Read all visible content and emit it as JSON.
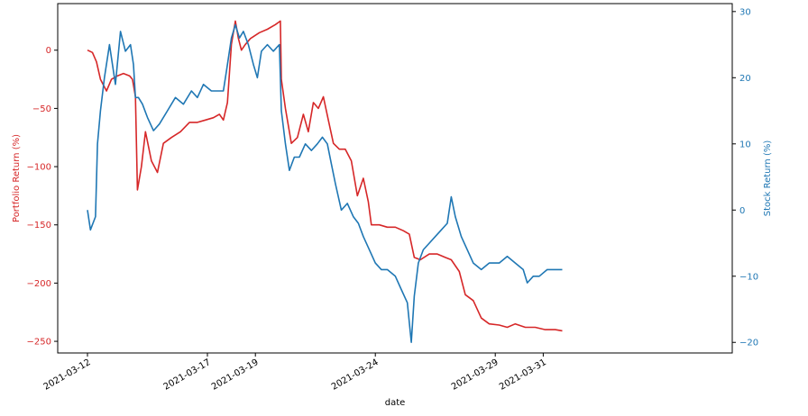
{
  "chart_data": {
    "type": "line",
    "xlabel": "date",
    "x_ticks": [
      "2021-03-12",
      "2021-03-17",
      "2021-03-19",
      "2021-03-24",
      "2021-03-29",
      "2021-03-31"
    ],
    "left_axis": {
      "label": "Portfolio Return (%)",
      "color": "#d62728",
      "ticks": [
        0,
        -50,
        -100,
        -150,
        -200,
        -250
      ],
      "ylim": [
        -260,
        40
      ]
    },
    "right_axis": {
      "label": "Stock Return (%)",
      "color": "#1f77b4",
      "ticks": [
        30,
        20,
        10,
        0,
        -10,
        -20
      ],
      "ylim": [
        -21.6,
        31.2
      ]
    },
    "grid": false,
    "series": [
      {
        "axis": "left",
        "color": "#d62728",
        "points": [
          [
            "2021-03-12 00:00",
            0
          ],
          [
            "2021-03-12 05:00",
            -2
          ],
          [
            "2021-03-12 09:00",
            -10
          ],
          [
            "2021-03-12 13:00",
            -25
          ],
          [
            "2021-03-12 19:00",
            -35
          ],
          [
            "2021-03-13 00:00",
            -25
          ],
          [
            "2021-03-13 06:00",
            -22
          ],
          [
            "2021-03-13 12:00",
            -20
          ],
          [
            "2021-03-13 18:00",
            -22
          ],
          [
            "2021-03-13 21:00",
            -25
          ],
          [
            "2021-03-14 00:00",
            -40
          ],
          [
            "2021-03-14 02:00",
            -120
          ],
          [
            "2021-03-14 06:00",
            -100
          ],
          [
            "2021-03-14 10:00",
            -70
          ],
          [
            "2021-03-14 16:00",
            -95
          ],
          [
            "2021-03-14 22:00",
            -105
          ],
          [
            "2021-03-15 04:00",
            -80
          ],
          [
            "2021-03-15 12:00",
            -75
          ],
          [
            "2021-03-15 21:00",
            -70
          ],
          [
            "2021-03-16 06:00",
            -62
          ],
          [
            "2021-03-16 14:00",
            -62
          ],
          [
            "2021-03-16 22:00",
            -60
          ],
          [
            "2021-03-17 06:00",
            -58
          ],
          [
            "2021-03-17 12:00",
            -55
          ],
          [
            "2021-03-17 16:00",
            -60
          ],
          [
            "2021-03-17 20:00",
            -45
          ],
          [
            "2021-03-18 00:00",
            5
          ],
          [
            "2021-03-18 04:00",
            25
          ],
          [
            "2021-03-18 07:00",
            10
          ],
          [
            "2021-03-18 10:00",
            0
          ],
          [
            "2021-03-18 14:00",
            5
          ],
          [
            "2021-03-18 19:00",
            10
          ],
          [
            "2021-03-19 04:00",
            15
          ],
          [
            "2021-03-19 12:00",
            18
          ],
          [
            "2021-03-19 20:00",
            22
          ],
          [
            "2021-03-20 01:00",
            25
          ],
          [
            "2021-03-20 02:00",
            -25
          ],
          [
            "2021-03-20 06:00",
            -50
          ],
          [
            "2021-03-20 12:00",
            -80
          ],
          [
            "2021-03-20 18:00",
            -75
          ],
          [
            "2021-03-21 00:00",
            -55
          ],
          [
            "2021-03-21 05:00",
            -70
          ],
          [
            "2021-03-21 10:00",
            -45
          ],
          [
            "2021-03-21 15:00",
            -50
          ],
          [
            "2021-03-21 20:00",
            -40
          ],
          [
            "2021-03-22 01:00",
            -60
          ],
          [
            "2021-03-22 06:00",
            -80
          ],
          [
            "2021-03-22 12:00",
            -85
          ],
          [
            "2021-03-22 18:00",
            -85
          ],
          [
            "2021-03-23 00:00",
            -95
          ],
          [
            "2021-03-23 06:00",
            -125
          ],
          [
            "2021-03-23 12:00",
            -110
          ],
          [
            "2021-03-23 17:00",
            -130
          ],
          [
            "2021-03-23 20:00",
            -150
          ],
          [
            "2021-03-24 04:00",
            -150
          ],
          [
            "2021-03-24 12:00",
            -152
          ],
          [
            "2021-03-24 20:00",
            -152
          ],
          [
            "2021-03-25 04:00",
            -155
          ],
          [
            "2021-03-25 10:00",
            -158
          ],
          [
            "2021-03-25 15:00",
            -178
          ],
          [
            "2021-03-25 21:00",
            -180
          ],
          [
            "2021-03-26 06:00",
            -175
          ],
          [
            "2021-03-26 14:00",
            -175
          ],
          [
            "2021-03-26 22:00",
            -178
          ],
          [
            "2021-03-27 04:00",
            -180
          ],
          [
            "2021-03-27 12:00",
            -190
          ],
          [
            "2021-03-27 18:00",
            -210
          ],
          [
            "2021-03-28 02:00",
            -215
          ],
          [
            "2021-03-28 10:00",
            -230
          ],
          [
            "2021-03-28 18:00",
            -235
          ],
          [
            "2021-03-29 04:00",
            -236
          ],
          [
            "2021-03-29 12:00",
            -238
          ],
          [
            "2021-03-29 20:00",
            -235
          ],
          [
            "2021-03-30 06:00",
            -238
          ],
          [
            "2021-03-30 16:00",
            -238
          ],
          [
            "2021-03-31 02:00",
            -240
          ],
          [
            "2021-03-31 12:00",
            -240
          ],
          [
            "2021-03-31 19:00",
            -241
          ]
        ]
      },
      {
        "axis": "right",
        "color": "#1f77b4",
        "points": [
          [
            "2021-03-12 00:00",
            0
          ],
          [
            "2021-03-12 03:00",
            -3
          ],
          [
            "2021-03-12 08:00",
            -1
          ],
          [
            "2021-03-12 10:00",
            10
          ],
          [
            "2021-03-12 13:00",
            15
          ],
          [
            "2021-03-12 17:00",
            20
          ],
          [
            "2021-03-12 22:00",
            25
          ],
          [
            "2021-03-13 04:00",
            19
          ],
          [
            "2021-03-13 09:00",
            27
          ],
          [
            "2021-03-13 14:00",
            24
          ],
          [
            "2021-03-13 19:00",
            25
          ],
          [
            "2021-03-13 22:00",
            22
          ],
          [
            "2021-03-14 00:00",
            17
          ],
          [
            "2021-03-14 03:00",
            17
          ],
          [
            "2021-03-14 07:00",
            16
          ],
          [
            "2021-03-14 12:00",
            14
          ],
          [
            "2021-03-14 18:00",
            12
          ],
          [
            "2021-03-15 00:00",
            13
          ],
          [
            "2021-03-15 08:00",
            15
          ],
          [
            "2021-03-15 16:00",
            17
          ],
          [
            "2021-03-16 00:00",
            16
          ],
          [
            "2021-03-16 08:00",
            18
          ],
          [
            "2021-03-16 14:00",
            17
          ],
          [
            "2021-03-16 20:00",
            19
          ],
          [
            "2021-03-17 04:00",
            18
          ],
          [
            "2021-03-17 10:00",
            18
          ],
          [
            "2021-03-17 16:00",
            18
          ],
          [
            "2021-03-17 19:00",
            21
          ],
          [
            "2021-03-18 00:00",
            26
          ],
          [
            "2021-03-18 04:00",
            28
          ],
          [
            "2021-03-18 08:00",
            26
          ],
          [
            "2021-03-18 12:00",
            27
          ],
          [
            "2021-03-18 17:00",
            25
          ],
          [
            "2021-03-18 22:00",
            22
          ],
          [
            "2021-03-19 02:00",
            20
          ],
          [
            "2021-03-19 06:00",
            24
          ],
          [
            "2021-03-19 12:00",
            25
          ],
          [
            "2021-03-19 18:00",
            24
          ],
          [
            "2021-03-20 00:00",
            25
          ],
          [
            "2021-03-20 02:00",
            15
          ],
          [
            "2021-03-20 06:00",
            10
          ],
          [
            "2021-03-20 10:00",
            6
          ],
          [
            "2021-03-20 15:00",
            8
          ],
          [
            "2021-03-20 20:00",
            8
          ],
          [
            "2021-03-21 02:00",
            10
          ],
          [
            "2021-03-21 08:00",
            9
          ],
          [
            "2021-03-21 14:00",
            10
          ],
          [
            "2021-03-21 19:00",
            11
          ],
          [
            "2021-03-22 00:00",
            10
          ],
          [
            "2021-03-22 04:00",
            7
          ],
          [
            "2021-03-22 08:00",
            4
          ],
          [
            "2021-03-22 14:00",
            0
          ],
          [
            "2021-03-22 20:00",
            1
          ],
          [
            "2021-03-23 02:00",
            -1
          ],
          [
            "2021-03-23 07:00",
            -2
          ],
          [
            "2021-03-23 12:00",
            -4
          ],
          [
            "2021-03-23 18:00",
            -6
          ],
          [
            "2021-03-24 00:00",
            -8
          ],
          [
            "2021-03-24 06:00",
            -9
          ],
          [
            "2021-03-24 12:00",
            -9
          ],
          [
            "2021-03-24 20:00",
            -10
          ],
          [
            "2021-03-25 02:00",
            -12
          ],
          [
            "2021-03-25 08:00",
            -14
          ],
          [
            "2021-03-25 12:00",
            -20
          ],
          [
            "2021-03-25 15:00",
            -13
          ],
          [
            "2021-03-25 19:00",
            -8
          ],
          [
            "2021-03-26 00:00",
            -6
          ],
          [
            "2021-03-26 06:00",
            -5
          ],
          [
            "2021-03-26 12:00",
            -4
          ],
          [
            "2021-03-26 18:00",
            -3
          ],
          [
            "2021-03-27 00:00",
            -2
          ],
          [
            "2021-03-27 04:00",
            2
          ],
          [
            "2021-03-27 08:00",
            -1
          ],
          [
            "2021-03-27 14:00",
            -4
          ],
          [
            "2021-03-27 20:00",
            -6
          ],
          [
            "2021-03-28 02:00",
            -8
          ],
          [
            "2021-03-28 10:00",
            -9
          ],
          [
            "2021-03-28 18:00",
            -8
          ],
          [
            "2021-03-29 04:00",
            -8
          ],
          [
            "2021-03-29 12:00",
            -7
          ],
          [
            "2021-03-29 20:00",
            -8
          ],
          [
            "2021-03-30 04:00",
            -9
          ],
          [
            "2021-03-30 08:00",
            -11
          ],
          [
            "2021-03-30 14:00",
            -10
          ],
          [
            "2021-03-30 20:00",
            -10
          ],
          [
            "2021-03-31 04:00",
            -9
          ],
          [
            "2021-03-31 12:00",
            -9
          ],
          [
            "2021-03-31 19:00",
            -9
          ]
        ]
      }
    ]
  }
}
